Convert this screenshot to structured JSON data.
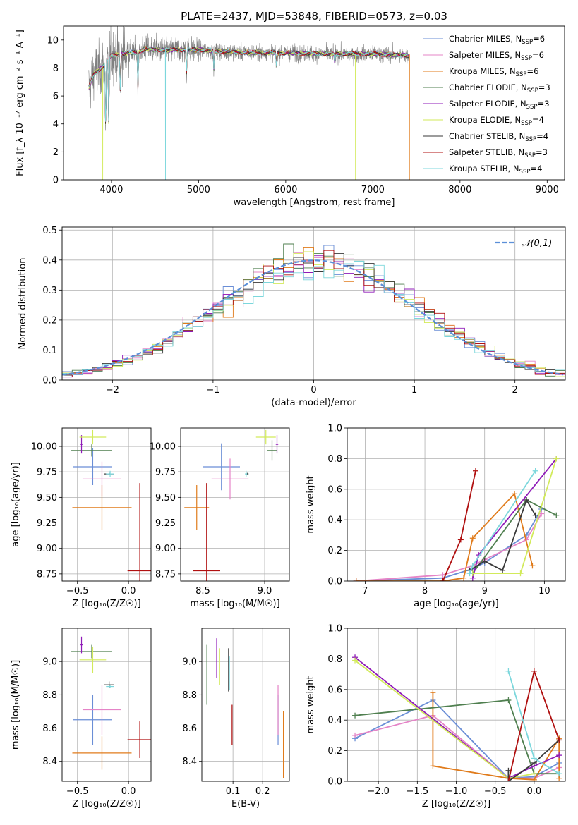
{
  "figure_title": "PLATE=2437, MJD=53848, FIBERID=0573, z=0.03",
  "colors": {
    "Chabrier MILES": "#6a8ed6",
    "Salpeter MILES": "#e584c7",
    "Kroupa MILES": "#e07b1b",
    "Chabrier ELODIE": "#4f7f4f",
    "Salpeter ELODIE": "#8f1bb8",
    "Kroupa ELODIE": "#d2ea5a",
    "Chabrier STELIB": "#3a3a3a",
    "Salpeter STELIB": "#b01010",
    "Kroupa STELIB": "#7cd7dc",
    "gaussian": "#5b8fd8",
    "data_gray": "#808080"
  },
  "chart_data": [
    {
      "id": "spectrum",
      "type": "line",
      "title": "PLATE=2437, MJD=53848, FIBERID=0573, z=0.03",
      "xlabel": "wavelength [Angstrom, rest frame]",
      "ylabel": "Flux [f_λ 10⁻¹⁷ erg cm⁻² s⁻¹ A⁻¹]",
      "xlim": [
        3450,
        9200
      ],
      "ylim": [
        0,
        11
      ],
      "xticks": [
        4000,
        5000,
        6000,
        7000,
        8000,
        9000
      ],
      "yticks": [
        0,
        2,
        4,
        6,
        8,
        10
      ],
      "grid": false,
      "legend_position": "right",
      "legend": [
        {
          "name": "Chabrier MILES",
          "nssp": "6"
        },
        {
          "name": "Salpeter MILES",
          "nssp": "6"
        },
        {
          "name": "Kroupa MILES",
          "nssp": "6"
        },
        {
          "name": "Chabrier ELODIE",
          "nssp": "3"
        },
        {
          "name": "Salpeter ELODIE",
          "nssp": "3"
        },
        {
          "name": "Kroupa ELODIE",
          "nssp": "4"
        },
        {
          "name": "Chabrier STELIB",
          "nssp": "4"
        },
        {
          "name": "Salpeter STELIB",
          "nssp": "3"
        },
        {
          "name": "Kroupa STELIB",
          "nssp": "4"
        }
      ],
      "continuum": [
        [
          3740,
          6.6
        ],
        [
          3800,
          7.6
        ],
        [
          3900,
          8.1
        ],
        [
          4000,
          8.9
        ],
        [
          4100,
          9.0
        ],
        [
          4200,
          9.1
        ],
        [
          4300,
          9.1
        ],
        [
          4400,
          9.4
        ],
        [
          4500,
          9.3
        ],
        [
          4700,
          9.3
        ],
        [
          5000,
          9.3
        ],
        [
          5500,
          9.1
        ],
        [
          6000,
          9.1
        ],
        [
          6500,
          9.0
        ],
        [
          7000,
          9.0
        ],
        [
          7420,
          8.9
        ]
      ],
      "absorption_lines": [
        [
          3934,
          3.6
        ],
        [
          3969,
          4.0
        ],
        [
          4102,
          6.2
        ],
        [
          4304,
          6.5
        ],
        [
          4861,
          7.6
        ],
        [
          5175,
          7.9
        ],
        [
          5893,
          8.2
        ],
        [
          6563,
          8.4
        ]
      ],
      "spikes": [
        {
          "series": "Kroupa ELODIE",
          "x": 3900,
          "y": 0
        },
        {
          "series": "Kroupa STELIB",
          "x": 4620,
          "y": 0
        },
        {
          "series": "Kroupa ELODIE",
          "x": 6800,
          "y": 0
        },
        {
          "series": "Kroupa MILES",
          "x": 7420,
          "y": 0
        }
      ]
    },
    {
      "id": "residuals",
      "type": "histogram",
      "xlabel": "(data-model)/error",
      "ylabel": "Normed distribution",
      "xlim": [
        -2.5,
        2.5
      ],
      "ylim": [
        0,
        0.51
      ],
      "xticks": [
        -2,
        -1,
        0,
        1,
        2
      ],
      "yticks": [
        0.0,
        0.1,
        0.2,
        0.3,
        0.4,
        0.5
      ],
      "grid": true,
      "legend_position": "top-right",
      "legend": "𝒩(0,1)",
      "bin_width": 0.1
    },
    {
      "id": "age-vs-Z",
      "type": "errorbar",
      "xlabel": "Z [log₁₀(Z/Z☉)]",
      "ylabel": "age [log₁₀(age/yr)]",
      "xlim": [
        -0.65,
        0.22
      ],
      "ylim": [
        8.68,
        10.18
      ],
      "xticks": [
        -0.5,
        0.0
      ],
      "yticks": [
        8.75,
        9.0,
        9.25,
        9.5,
        9.75,
        10.0
      ],
      "grid": true,
      "points": [
        {
          "series": "Chabrier MILES",
          "x": -0.35,
          "xerr": 0.19,
          "y": 9.8,
          "yerr": 0.18
        },
        {
          "series": "Salpeter MILES",
          "x": -0.26,
          "xerr": 0.19,
          "y": 9.68,
          "yerr": 0.17
        },
        {
          "series": "Kroupa MILES",
          "x": -0.26,
          "xerr": 0.29,
          "y": 9.4,
          "yerr": 0.22
        },
        {
          "series": "Chabrier ELODIE",
          "x": -0.36,
          "xerr": 0.2,
          "y": 9.96,
          "yerr": 0.06
        },
        {
          "series": "Salpeter ELODIE",
          "x": -0.46,
          "xerr": 0.01,
          "y": 10.02,
          "yerr": 0.09
        },
        {
          "series": "Kroupa ELODIE",
          "x": -0.35,
          "xerr": 0.13,
          "y": 10.09,
          "yerr": 0.07
        },
        {
          "series": "Chabrier STELIB",
          "x": -0.19,
          "xerr": 0.05,
          "y": 9.73,
          "yerr": 0.01
        },
        {
          "series": "Salpeter STELIB",
          "x": 0.11,
          "xerr": 0.12,
          "y": 8.78,
          "yerr": 0.86
        },
        {
          "series": "Kroupa STELIB",
          "x": -0.18,
          "xerr": 0.04,
          "y": 9.73,
          "yerr": 0.03
        }
      ]
    },
    {
      "id": "age-vs-mass",
      "type": "errorbar",
      "xlabel": "mass [log₁₀(M/M☉)]",
      "ylabel": "",
      "xlim": [
        8.32,
        9.2
      ],
      "ylim": [
        8.68,
        10.18
      ],
      "xticks": [
        8.5,
        9.0
      ],
      "yticks": [
        8.75,
        9.0,
        9.25,
        9.5,
        9.75,
        10.0
      ],
      "grid": true,
      "points": [
        {
          "series": "Chabrier MILES",
          "x": 8.65,
          "xerr": 0.15,
          "y": 9.8,
          "yerr": 0.23
        },
        {
          "series": "Salpeter MILES",
          "x": 8.72,
          "xerr": 0.15,
          "y": 9.68,
          "yerr": 0.2
        },
        {
          "series": "Kroupa MILES",
          "x": 8.45,
          "xerr": 0.1,
          "y": 9.4,
          "yerr": 0.22
        },
        {
          "series": "Chabrier ELODIE",
          "x": 9.06,
          "xerr": 0.04,
          "y": 9.96,
          "yerr": 0.1
        },
        {
          "series": "Salpeter ELODIE",
          "x": 9.1,
          "xerr": 0.01,
          "y": 10.02,
          "yerr": 0.09
        },
        {
          "series": "Kroupa ELODIE",
          "x": 9.01,
          "xerr": 0.08,
          "y": 10.09,
          "yerr": 0.07
        },
        {
          "series": "Chabrier STELIB",
          "x": 8.86,
          "xerr": 0.01,
          "y": 9.73,
          "yerr": 0.01
        },
        {
          "series": "Salpeter STELIB",
          "x": 8.53,
          "xerr": 0.11,
          "y": 8.78,
          "yerr": 0.86
        },
        {
          "series": "Kroupa STELIB",
          "x": 8.85,
          "xerr": 0.01,
          "y": 9.73,
          "yerr": 0.03
        }
      ]
    },
    {
      "id": "mass-weight-vs-age",
      "type": "line",
      "xlabel": "age [log₁₀(age/yr)]",
      "ylabel": "mass weight",
      "xlim": [
        6.7,
        10.35
      ],
      "ylim": [
        0,
        1
      ],
      "xticks": [
        7,
        8,
        9,
        10
      ],
      "yticks": [
        0.0,
        0.2,
        0.4,
        0.6,
        0.8,
        1.0
      ],
      "grid": true,
      "series": [
        {
          "name": "Chabrier MILES",
          "points": [
            [
              6.85,
              0.0
            ],
            [
              8.3,
              0.02
            ],
            [
              8.8,
              0.08
            ],
            [
              9.0,
              0.12
            ],
            [
              9.7,
              0.3
            ],
            [
              9.95,
              0.47
            ]
          ]
        },
        {
          "name": "Salpeter MILES",
          "points": [
            [
              6.85,
              0.0
            ],
            [
              8.3,
              0.04
            ],
            [
              8.8,
              0.1
            ],
            [
              9.0,
              0.14
            ],
            [
              9.7,
              0.27
            ],
            [
              9.95,
              0.44
            ]
          ]
        },
        {
          "name": "Kroupa MILES",
          "points": [
            [
              6.85,
              0.0
            ],
            [
              8.3,
              0.0
            ],
            [
              8.65,
              0.02
            ],
            [
              8.8,
              0.28
            ],
            [
              9.5,
              0.57
            ],
            [
              9.8,
              0.1
            ]
          ]
        },
        {
          "name": "Chabrier ELODIE",
          "points": [
            [
              8.8,
              0.05
            ],
            [
              9.7,
              0.53
            ],
            [
              10.2,
              0.43
            ]
          ]
        },
        {
          "name": "Salpeter ELODIE",
          "points": [
            [
              8.8,
              0.02
            ],
            [
              8.9,
              0.17
            ],
            [
              10.2,
              0.8
            ]
          ]
        },
        {
          "name": "Kroupa ELODIE",
          "points": [
            [
              8.8,
              0.05
            ],
            [
              9.6,
              0.05
            ],
            [
              10.2,
              0.8
            ]
          ]
        },
        {
          "name": "Chabrier STELIB",
          "points": [
            [
              8.75,
              0.07
            ],
            [
              9.0,
              0.13
            ],
            [
              9.3,
              0.07
            ],
            [
              9.7,
              0.53
            ],
            [
              9.85,
              0.43
            ]
          ]
        },
        {
          "name": "Salpeter STELIB",
          "points": [
            [
              8.3,
              0.0
            ],
            [
              8.6,
              0.27
            ],
            [
              8.85,
              0.72
            ]
          ]
        },
        {
          "name": "Kroupa STELIB",
          "points": [
            [
              8.75,
              0.05
            ],
            [
              8.8,
              0.1
            ],
            [
              9.85,
              0.72
            ]
          ]
        }
      ]
    },
    {
      "id": "mass-vs-Z",
      "type": "errorbar",
      "xlabel": "Z [log₁₀(Z/Z☉)]",
      "ylabel": "mass [log₁₀(M/M☉)]",
      "xlim": [
        -0.65,
        0.22
      ],
      "ylim": [
        8.28,
        9.2
      ],
      "xticks": [
        -0.5,
        0.0
      ],
      "yticks": [
        8.4,
        8.6,
        8.8,
        9.0
      ],
      "grid": true,
      "points": [
        {
          "series": "Chabrier MILES",
          "x": -0.35,
          "xerr": 0.19,
          "y": 8.65,
          "yerr": 0.15
        },
        {
          "series": "Salpeter MILES",
          "x": -0.26,
          "xerr": 0.19,
          "y": 8.71,
          "yerr": 0.15
        },
        {
          "series": "Kroupa MILES",
          "x": -0.26,
          "xerr": 0.29,
          "y": 8.45,
          "yerr": 0.1
        },
        {
          "series": "Chabrier ELODIE",
          "x": -0.36,
          "xerr": 0.2,
          "y": 9.06,
          "yerr": 0.04
        },
        {
          "series": "Salpeter ELODIE",
          "x": -0.46,
          "xerr": 0.01,
          "y": 9.1,
          "yerr": 0.05
        },
        {
          "series": "Kroupa ELODIE",
          "x": -0.35,
          "xerr": 0.13,
          "y": 9.01,
          "yerr": 0.08
        },
        {
          "series": "Chabrier STELIB",
          "x": -0.19,
          "xerr": 0.05,
          "y": 8.86,
          "yerr": 0.02
        },
        {
          "series": "Salpeter STELIB",
          "x": 0.11,
          "xerr": 0.12,
          "y": 8.53,
          "yerr": 0.11
        },
        {
          "series": "Kroupa STELIB",
          "x": -0.18,
          "xerr": 0.04,
          "y": 8.85,
          "yerr": 0.01
        }
      ]
    },
    {
      "id": "mass-vs-ebv",
      "type": "errorbar",
      "xlabel": "E(B-V)",
      "ylabel": "",
      "xlim": [
        -0.005,
        0.29
      ],
      "ylim": [
        8.28,
        9.2
      ],
      "xticks": [
        0.1,
        0.2
      ],
      "yticks": [
        8.4,
        8.6,
        8.8,
        9.0
      ],
      "grid": true,
      "points": [
        {
          "series": "Chabrier MILES",
          "x": 0.252,
          "xerr": 0,
          "y": 8.65,
          "yerr": 0.15
        },
        {
          "series": "Salpeter MILES",
          "x": 0.252,
          "xerr": 0,
          "y": 8.71,
          "yerr": 0.15
        },
        {
          "series": "Kroupa MILES",
          "x": 0.27,
          "xerr": 0,
          "y": 8.5,
          "yerr": 0.2
        },
        {
          "series": "Chabrier ELODIE",
          "x": 0.012,
          "xerr": 0,
          "y": 8.92,
          "yerr": 0.18
        },
        {
          "series": "Salpeter ELODIE",
          "x": 0.045,
          "xerr": 0,
          "y": 9.02,
          "yerr": 0.12
        },
        {
          "series": "Kroupa ELODIE",
          "x": 0.055,
          "xerr": 0,
          "y": 8.97,
          "yerr": 0.11
        },
        {
          "series": "Chabrier STELIB",
          "x": 0.085,
          "xerr": 0,
          "y": 8.95,
          "yerr": 0.13
        },
        {
          "series": "Salpeter STELIB",
          "x": 0.097,
          "xerr": 0,
          "y": 8.62,
          "yerr": 0.12
        },
        {
          "series": "Kroupa STELIB",
          "x": 0.088,
          "xerr": 0,
          "y": 8.93,
          "yerr": 0.1
        }
      ]
    },
    {
      "id": "mass-weight-vs-Z",
      "type": "line",
      "xlabel": "Z [log₁₀(Z/Z☉)]",
      "ylabel": "mass weight",
      "xlim": [
        -2.4,
        0.4
      ],
      "ylim": [
        0,
        1
      ],
      "xticks": [
        -2.0,
        -1.5,
        -1.0,
        -0.5,
        0.0
      ],
      "yticks": [
        0.0,
        0.2,
        0.4,
        0.6,
        0.8,
        1.0
      ],
      "grid": true,
      "series": [
        {
          "name": "Chabrier MILES",
          "points": [
            [
              -2.3,
              0.28
            ],
            [
              -1.3,
              0.53
            ],
            [
              -0.33,
              0.02
            ],
            [
              0,
              0.03
            ],
            [
              0.32,
              0.12
            ]
          ]
        },
        {
          "name": "Salpeter MILES",
          "points": [
            [
              -2.3,
              0.3
            ],
            [
              -1.3,
              0.43
            ],
            [
              -0.33,
              0.02
            ],
            [
              0,
              0.02
            ],
            [
              0.32,
              0.09
            ]
          ]
        },
        {
          "name": "Kroupa MILES",
          "points": [
            [
              -1.3,
              0.58
            ],
            [
              -1.3,
              0.1
            ],
            [
              -0.33,
              0.02
            ],
            [
              0,
              0.01
            ],
            [
              0.32,
              0.28
            ],
            [
              0.32,
              0.02
            ]
          ]
        },
        {
          "name": "Chabrier ELODIE",
          "points": [
            [
              -2.3,
              0.43
            ],
            [
              -0.33,
              0.53
            ],
            [
              0,
              0.05
            ],
            [
              0.32,
              0.05
            ]
          ]
        },
        {
          "name": "Salpeter ELODIE",
          "points": [
            [
              -2.3,
              0.81
            ],
            [
              -0.33,
              0.02
            ],
            [
              0,
              0.1
            ],
            [
              0.32,
              0.17
            ]
          ]
        },
        {
          "name": "Kroupa ELODIE",
          "points": [
            [
              -2.3,
              0.79
            ],
            [
              -0.33,
              0.02
            ],
            [
              0,
              0.05
            ]
          ]
        },
        {
          "name": "Chabrier STELIB",
          "points": [
            [
              -0.33,
              0.07
            ],
            [
              -0.33,
              0.0
            ],
            [
              0,
              0.12
            ],
            [
              0.32,
              0.27
            ]
          ]
        },
        {
          "name": "Salpeter STELIB",
          "points": [
            [
              -0.33,
              0.0
            ],
            [
              0,
              0.72
            ],
            [
              0.32,
              0.27
            ]
          ]
        },
        {
          "name": "Kroupa STELIB",
          "points": [
            [
              -0.33,
              0.72
            ],
            [
              0,
              0.15
            ],
            [
              0.32,
              0.05
            ]
          ]
        }
      ]
    }
  ]
}
